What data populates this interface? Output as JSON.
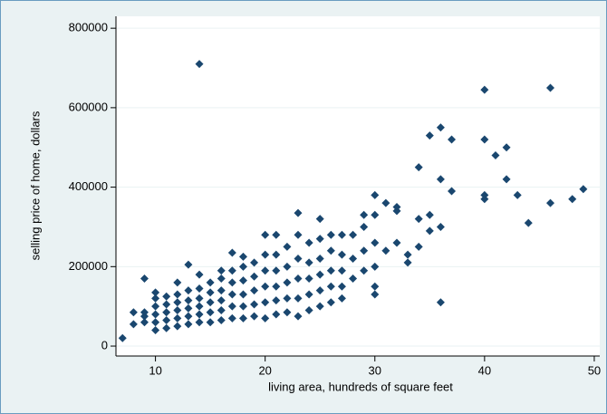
{
  "chart_data": {
    "type": "scatter",
    "x_label": "living area, hundreds of square feet",
    "y_label": "selling price of home, dollars",
    "xlim": [
      6.4,
      50.5
    ],
    "ylim": [
      -25000,
      830000
    ],
    "xticks": [
      10,
      20,
      30,
      40,
      50
    ],
    "yticks": [
      0,
      200000,
      400000,
      600000,
      800000
    ],
    "grid": true,
    "marker": "diamond",
    "x": [
      7,
      8,
      8,
      9,
      9,
      9,
      9,
      10,
      10,
      10,
      10,
      10,
      10,
      11,
      11,
      11,
      11,
      11,
      12,
      12,
      12,
      12,
      12,
      12,
      13,
      13,
      13,
      13,
      13,
      13,
      14,
      14,
      14,
      14,
      14,
      14,
      14,
      15,
      15,
      15,
      15,
      15,
      16,
      16,
      16,
      16,
      16,
      16,
      17,
      17,
      17,
      17,
      17,
      17,
      18,
      18,
      18,
      18,
      18,
      18,
      19,
      19,
      19,
      19,
      19,
      20,
      20,
      20,
      20,
      20,
      20,
      21,
      21,
      21,
      21,
      21,
      21,
      22,
      22,
      22,
      22,
      22,
      23,
      23,
      23,
      23,
      23,
      23,
      24,
      24,
      24,
      24,
      24,
      25,
      25,
      25,
      25,
      25,
      25,
      26,
      26,
      26,
      26,
      26,
      27,
      27,
      27,
      27,
      27,
      28,
      28,
      28,
      29,
      29,
      29,
      29,
      30,
      30,
      30,
      30,
      30,
      30,
      31,
      31,
      32,
      32,
      32,
      33,
      33,
      34,
      34,
      34,
      35,
      35,
      35,
      36,
      36,
      36,
      36,
      37,
      37,
      40,
      40,
      40,
      40,
      41,
      42,
      42,
      43,
      44,
      46,
      46,
      48,
      49
    ],
    "series": [
      {
        "color": "#1a476f",
        "values": [
          20000,
          55000,
          85000,
          60000,
          75000,
          170000,
          85000,
          40000,
          60000,
          80000,
          100000,
          120000,
          135000,
          45000,
          65000,
          85000,
          105000,
          125000,
          50000,
          70000,
          90000,
          110000,
          130000,
          160000,
          55000,
          75000,
          95000,
          115000,
          140000,
          205000,
          60000,
          80000,
          100000,
          120000,
          145000,
          180000,
          710000,
          60000,
          85000,
          110000,
          135000,
          160000,
          65000,
          90000,
          115000,
          140000,
          170000,
          190000,
          70000,
          100000,
          130000,
          160000,
          190000,
          235000,
          70000,
          100000,
          130000,
          165000,
          200000,
          225000,
          75000,
          105000,
          140000,
          175000,
          210000,
          70000,
          110000,
          150000,
          190000,
          230000,
          280000,
          80000,
          115000,
          150000,
          190000,
          230000,
          280000,
          85000,
          120000,
          160000,
          200000,
          250000,
          75000,
          120000,
          170000,
          220000,
          280000,
          335000,
          90000,
          130000,
          170000,
          210000,
          260000,
          100000,
          140000,
          180000,
          220000,
          270000,
          320000,
          110000,
          150000,
          190000,
          240000,
          280000,
          120000,
          150000,
          190000,
          230000,
          280000,
          170000,
          220000,
          280000,
          190000,
          240000,
          300000,
          330000,
          130000,
          150000,
          200000,
          260000,
          330000,
          380000,
          240000,
          360000,
          260000,
          340000,
          350000,
          210000,
          230000,
          250000,
          320000,
          450000,
          290000,
          330000,
          530000,
          110000,
          300000,
          420000,
          550000,
          390000,
          520000,
          370000,
          380000,
          520000,
          645000,
          480000,
          420000,
          500000,
          380000,
          310000,
          360000,
          650000,
          370000,
          395000
        ]
      }
    ]
  }
}
